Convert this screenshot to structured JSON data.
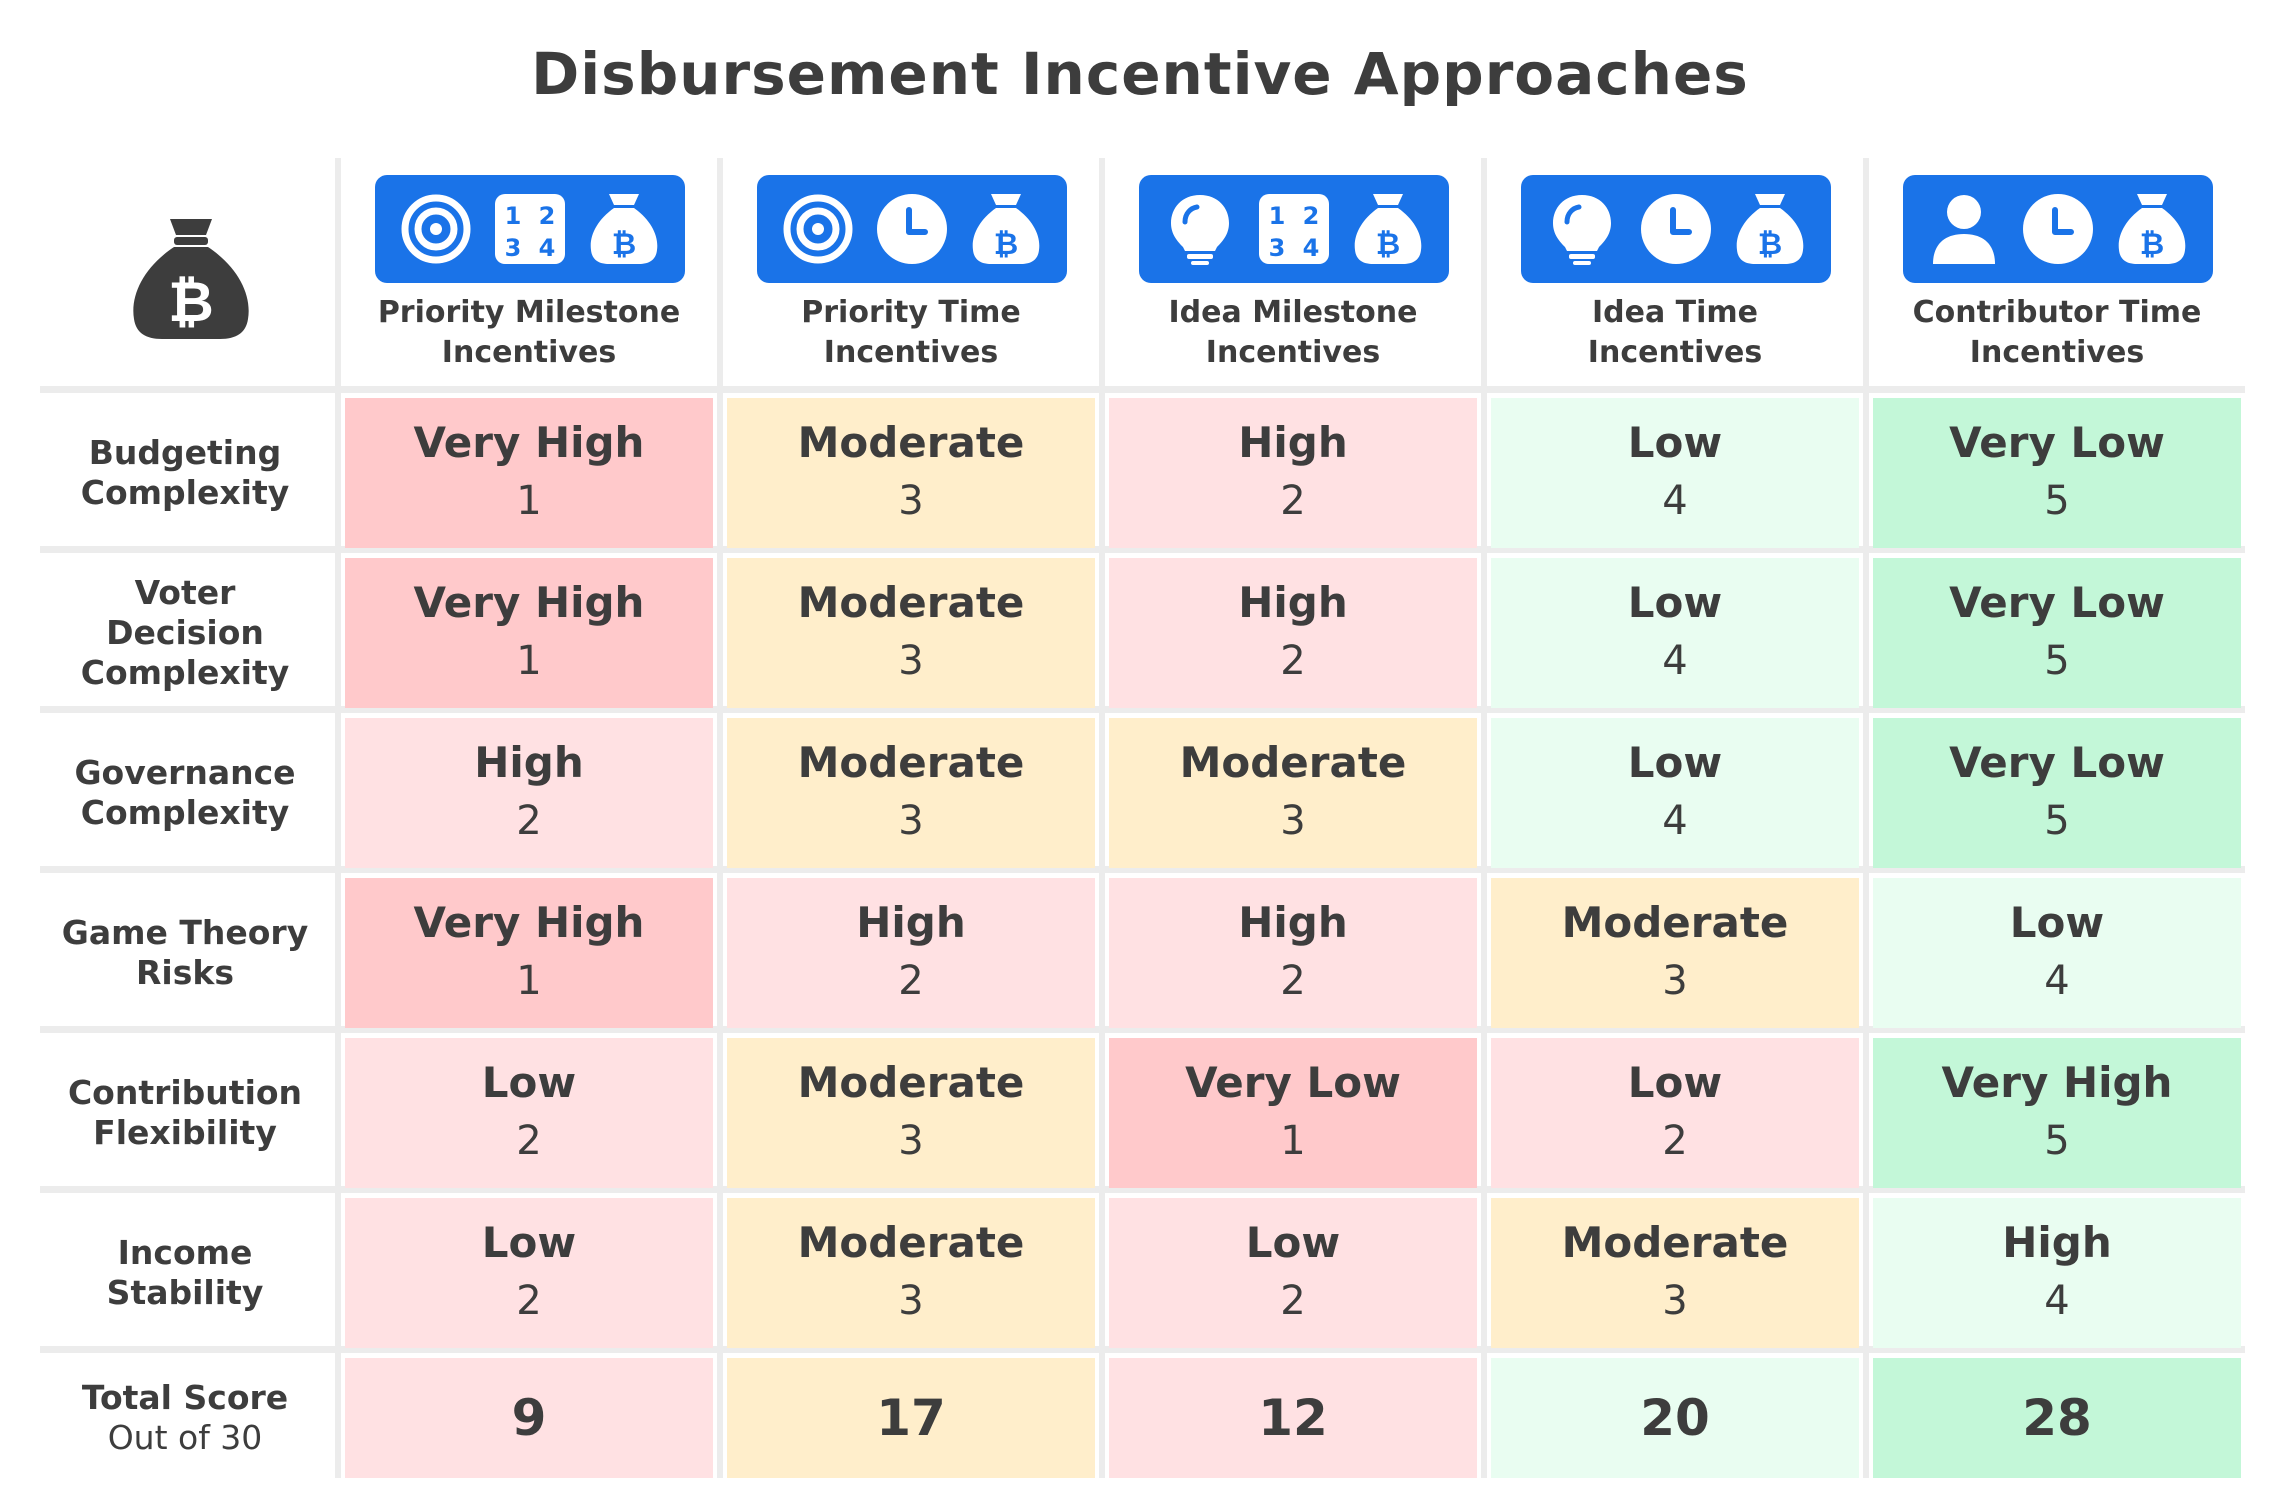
{
  "title": "Disbursement Incentive Approaches",
  "corner_icon": "bitcoin-money-bag-icon",
  "colors": {
    "accent": "#1a73e8",
    "score_1": "#ffc9cb",
    "score_2": "#ffe1e3",
    "score_3": "#ffeecb",
    "score_4": "#e9fdf1",
    "score_5": "#c3f7d8",
    "text": "#3d3d3d"
  },
  "columns": [
    {
      "line1": "Priority Milestone",
      "line2": "Incentives",
      "icons": [
        "target-icon",
        "numbered-grid-icon",
        "bitcoin-bag-icon"
      ]
    },
    {
      "line1": "Priority Time",
      "line2": "Incentives",
      "icons": [
        "target-icon",
        "clock-icon",
        "bitcoin-bag-icon"
      ]
    },
    {
      "line1": "Idea Milestone",
      "line2": "Incentives",
      "icons": [
        "lightbulb-icon",
        "numbered-grid-icon",
        "bitcoin-bag-icon"
      ]
    },
    {
      "line1": "Idea Time",
      "line2": "Incentives",
      "icons": [
        "lightbulb-icon",
        "clock-icon",
        "bitcoin-bag-icon"
      ]
    },
    {
      "line1": "Contributor Time",
      "line2": "Incentives",
      "icons": [
        "person-icon",
        "clock-icon",
        "bitcoin-bag-icon"
      ]
    }
  ],
  "rows": [
    {
      "label": [
        "Budgeting",
        "Complexity"
      ],
      "cells": [
        {
          "level": "Very High",
          "score": 1
        },
        {
          "level": "Moderate",
          "score": 3
        },
        {
          "level": "High",
          "score": 2
        },
        {
          "level": "Low",
          "score": 4
        },
        {
          "level": "Very Low",
          "score": 5
        }
      ]
    },
    {
      "label": [
        "Voter",
        "Decision",
        "Complexity"
      ],
      "cells": [
        {
          "level": "Very High",
          "score": 1
        },
        {
          "level": "Moderate",
          "score": 3
        },
        {
          "level": "High",
          "score": 2
        },
        {
          "level": "Low",
          "score": 4
        },
        {
          "level": "Very Low",
          "score": 5
        }
      ]
    },
    {
      "label": [
        "Governance",
        "Complexity"
      ],
      "cells": [
        {
          "level": "High",
          "score": 2
        },
        {
          "level": "Moderate",
          "score": 3
        },
        {
          "level": "Moderate",
          "score": 3
        },
        {
          "level": "Low",
          "score": 4
        },
        {
          "level": "Very Low",
          "score": 5
        }
      ]
    },
    {
      "label": [
        "Game Theory",
        "Risks"
      ],
      "cells": [
        {
          "level": "Very High",
          "score": 1
        },
        {
          "level": "High",
          "score": 2
        },
        {
          "level": "High",
          "score": 2
        },
        {
          "level": "Moderate",
          "score": 3
        },
        {
          "level": "Low",
          "score": 4
        }
      ]
    },
    {
      "label": [
        "Contribution",
        "Flexibility"
      ],
      "cells": [
        {
          "level": "Low",
          "score": 2
        },
        {
          "level": "Moderate",
          "score": 3
        },
        {
          "level": "Very Low",
          "score": 1
        },
        {
          "level": "Low",
          "score": 2
        },
        {
          "level": "Very High",
          "score": 5
        }
      ]
    },
    {
      "label": [
        "Income",
        "Stability"
      ],
      "cells": [
        {
          "level": "Low",
          "score": 2
        },
        {
          "level": "Moderate",
          "score": 3
        },
        {
          "level": "Low",
          "score": 2
        },
        {
          "level": "Moderate",
          "score": 3
        },
        {
          "level": "High",
          "score": 4
        }
      ]
    }
  ],
  "total": {
    "label": "Total Score",
    "sublabel": "Out of 30",
    "values": [
      9,
      17,
      12,
      20,
      28
    ],
    "tiers": [
      2,
      3,
      2,
      4,
      5
    ]
  },
  "chart_data": {
    "type": "table",
    "title": "Disbursement Incentive Approaches",
    "columns": [
      "Priority Milestone Incentives",
      "Priority Time Incentives",
      "Idea Milestone Incentives",
      "Idea Time Incentives",
      "Contributor Time Incentives"
    ],
    "rows": [
      "Budgeting Complexity",
      "Voter Decision Complexity",
      "Governance Complexity",
      "Game Theory Risks",
      "Contribution Flexibility",
      "Income Stability"
    ],
    "values": [
      [
        1,
        3,
        2,
        4,
        5
      ],
      [
        1,
        3,
        2,
        4,
        5
      ],
      [
        2,
        3,
        3,
        4,
        5
      ],
      [
        1,
        2,
        2,
        3,
        4
      ],
      [
        2,
        3,
        1,
        2,
        5
      ],
      [
        2,
        3,
        2,
        3,
        4
      ]
    ],
    "levels": [
      [
        "Very High",
        "Moderate",
        "High",
        "Low",
        "Very Low"
      ],
      [
        "Very High",
        "Moderate",
        "High",
        "Low",
        "Very Low"
      ],
      [
        "High",
        "Moderate",
        "Moderate",
        "Low",
        "Very Low"
      ],
      [
        "Very High",
        "High",
        "High",
        "Moderate",
        "Low"
      ],
      [
        "Low",
        "Moderate",
        "Very Low",
        "Low",
        "Very High"
      ],
      [
        "Low",
        "Moderate",
        "Low",
        "Moderate",
        "High"
      ]
    ],
    "totals": [
      9,
      17,
      12,
      20,
      28
    ],
    "total_label": "Total Score",
    "total_sublabel": "Out of 30"
  }
}
